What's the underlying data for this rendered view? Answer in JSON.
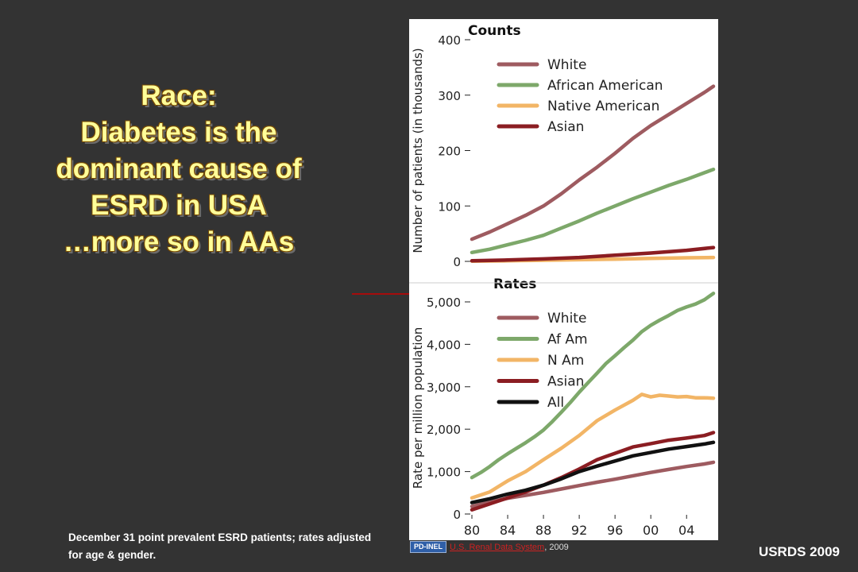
{
  "slide": {
    "title_lines": [
      "Race:",
      "Diabetes is the",
      "dominant cause of",
      "ESRD in USA",
      "…more so in AAs"
    ],
    "footnote": "December 31 point prevalent ESRD patients; rates adjusted for age & gender.",
    "attribution_badge": "PD-INEL",
    "attribution_source": "U.S. Renal Data System",
    "attribution_year": ", 2009",
    "brand": "USRDS 2009",
    "colors": {
      "background": "#333333",
      "title": "#ffff99",
      "arrow": "#cc0000"
    }
  },
  "chart_data": [
    {
      "type": "line",
      "title": "Counts",
      "ylabel": "Number of patients (in thousands)",
      "xlabel": "",
      "ylim": [
        0,
        400
      ],
      "yticks": [
        0,
        100,
        200,
        300,
        400
      ],
      "ytick_labels": [
        "0",
        "100",
        "200",
        "300",
        "400"
      ],
      "xlim": [
        1980,
        2007
      ],
      "grid": false,
      "legend_position": "top-left",
      "series": [
        {
          "name": "White",
          "color": "#9e5b60",
          "x": [
            1980,
            1982,
            1984,
            1986,
            1988,
            1990,
            1992,
            1994,
            1996,
            1998,
            2000,
            2002,
            2004,
            2006,
            2007
          ],
          "y": [
            40,
            53,
            68,
            83,
            100,
            122,
            147,
            170,
            195,
            222,
            245,
            265,
            285,
            305,
            316
          ]
        },
        {
          "name": "African American",
          "color": "#7da86a",
          "x": [
            1980,
            1982,
            1984,
            1986,
            1988,
            1990,
            1992,
            1994,
            1996,
            1998,
            2000,
            2002,
            2004,
            2006,
            2007
          ],
          "y": [
            16,
            22,
            30,
            38,
            47,
            60,
            73,
            87,
            100,
            113,
            125,
            137,
            148,
            160,
            166
          ]
        },
        {
          "name": "Native American",
          "color": "#f2b566",
          "x": [
            1980,
            1984,
            1988,
            1992,
            1996,
            2000,
            2004,
            2007
          ],
          "y": [
            0.5,
            1,
            2,
            3,
            4,
            5.5,
            6.5,
            7
          ]
        },
        {
          "name": "Asian",
          "color": "#8b1d22",
          "x": [
            1980,
            1984,
            1988,
            1992,
            1996,
            2000,
            2004,
            2007
          ],
          "y": [
            1,
            2.5,
            4.5,
            7,
            11,
            15,
            20,
            25
          ]
        }
      ]
    },
    {
      "type": "line",
      "title": "Rates",
      "ylabel": "Rate per million population",
      "xlabel": "",
      "ylim": [
        0,
        5000
      ],
      "yticks": [
        0,
        1000,
        2000,
        3000,
        4000,
        5000
      ],
      "ytick_labels": [
        "0",
        "1,000",
        "2,000",
        "3,000",
        "4,000",
        "5,000"
      ],
      "xlim": [
        1980,
        2007
      ],
      "xticks": [
        1980,
        1984,
        1988,
        1992,
        1996,
        2000,
        2004
      ],
      "xtick_labels": [
        "80",
        "84",
        "88",
        "92",
        "96",
        "00",
        "04"
      ],
      "grid": false,
      "legend_position": "top-left",
      "series": [
        {
          "name": "White",
          "color": "#9e5b60",
          "x": [
            1980,
            1982,
            1984,
            1986,
            1988,
            1990,
            1992,
            1994,
            1996,
            1998,
            2000,
            2002,
            2004,
            2006,
            2007
          ],
          "y": [
            180,
            280,
            370,
            440,
            510,
            590,
            670,
            750,
            820,
            900,
            980,
            1050,
            1120,
            1180,
            1220
          ]
        },
        {
          "name": "Af Am",
          "color": "#7da86a",
          "x": [
            1980,
            1981,
            1982,
            1983,
            1984,
            1985,
            1986,
            1987,
            1988,
            1989,
            1990,
            1991,
            1992,
            1993,
            1994,
            1995,
            1996,
            1997,
            1998,
            1999,
            2000,
            2001,
            2002,
            2003,
            2004,
            2005,
            2006,
            2007
          ],
          "y": [
            860,
            980,
            1120,
            1280,
            1420,
            1550,
            1680,
            1820,
            1980,
            2180,
            2400,
            2630,
            2870,
            3100,
            3320,
            3550,
            3730,
            3920,
            4100,
            4300,
            4450,
            4570,
            4680,
            4800,
            4880,
            4950,
            5050,
            5200
          ]
        },
        {
          "name": "N Am",
          "color": "#f2b566",
          "x": [
            1980,
            1982,
            1984,
            1986,
            1988,
            1990,
            1992,
            1994,
            1996,
            1998,
            1999,
            2000,
            2001,
            2002,
            2003,
            2004,
            2005,
            2006,
            2007
          ],
          "y": [
            380,
            520,
            780,
            1000,
            1280,
            1550,
            1850,
            2200,
            2450,
            2680,
            2820,
            2760,
            2800,
            2780,
            2760,
            2770,
            2740,
            2740,
            2730
          ]
        },
        {
          "name": "Asian",
          "color": "#8b1d22",
          "x": [
            1980,
            1982,
            1984,
            1986,
            1988,
            1990,
            1992,
            1994,
            1996,
            1998,
            2000,
            2002,
            2004,
            2006,
            2007
          ],
          "y": [
            100,
            240,
            380,
            520,
            680,
            860,
            1060,
            1280,
            1430,
            1580,
            1660,
            1740,
            1790,
            1850,
            1920
          ]
        },
        {
          "name": "All",
          "color": "#111111",
          "x": [
            1980,
            1982,
            1984,
            1986,
            1988,
            1990,
            1992,
            1994,
            1996,
            1998,
            2000,
            2002,
            2004,
            2006,
            2007
          ],
          "y": [
            270,
            360,
            470,
            560,
            680,
            830,
            1000,
            1130,
            1250,
            1370,
            1450,
            1530,
            1590,
            1650,
            1690
          ]
        }
      ]
    }
  ]
}
